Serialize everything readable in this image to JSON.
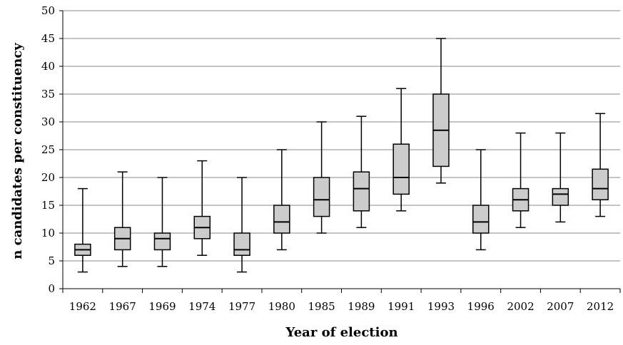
{
  "chart_data": {
    "type": "boxplot",
    "xlabel": "Year of election",
    "ylabel": "n candidates per constituency",
    "ylim": [
      0,
      50
    ],
    "y_ticks": [
      0,
      5,
      10,
      15,
      20,
      25,
      30,
      35,
      40,
      45,
      50
    ],
    "grid": true,
    "categories": [
      "1962",
      "1967",
      "1969",
      "1974",
      "1977",
      "1980",
      "1985",
      "1989",
      "1991",
      "1993",
      "1996",
      "2002",
      "2007",
      "2012"
    ],
    "boxes": [
      {
        "min": 3,
        "q1": 6,
        "median": 7,
        "q3": 8,
        "max": 18
      },
      {
        "min": 4,
        "q1": 7,
        "median": 9,
        "q3": 11,
        "max": 21
      },
      {
        "min": 4,
        "q1": 7,
        "median": 9,
        "q3": 10,
        "max": 20
      },
      {
        "min": 6,
        "q1": 9,
        "median": 11,
        "q3": 13,
        "max": 23
      },
      {
        "min": 3,
        "q1": 6,
        "median": 7,
        "q3": 10,
        "max": 20
      },
      {
        "min": 7,
        "q1": 10,
        "median": 12,
        "q3": 15,
        "max": 25
      },
      {
        "min": 10,
        "q1": 13,
        "median": 16,
        "q3": 20,
        "max": 30
      },
      {
        "min": 11,
        "q1": 14,
        "median": 18,
        "q3": 21,
        "max": 31
      },
      {
        "min": 14,
        "q1": 17,
        "median": 20,
        "q3": 26,
        "max": 36
      },
      {
        "min": 19,
        "q1": 22,
        "median": 28.5,
        "q3": 35,
        "max": 45
      },
      {
        "min": 7,
        "q1": 10,
        "median": 12,
        "q3": 15,
        "max": 25
      },
      {
        "min": 11,
        "q1": 14,
        "median": 16,
        "q3": 18,
        "max": 28
      },
      {
        "min": 12,
        "q1": 15,
        "median": 17,
        "q3": 18,
        "max": 28
      },
      {
        "min": 13,
        "q1": 16,
        "median": 18,
        "q3": 21.5,
        "max": 31.5
      }
    ],
    "colors": {
      "box_fill": "#cccccc",
      "stroke": "#000000",
      "grid": "#888888"
    }
  }
}
